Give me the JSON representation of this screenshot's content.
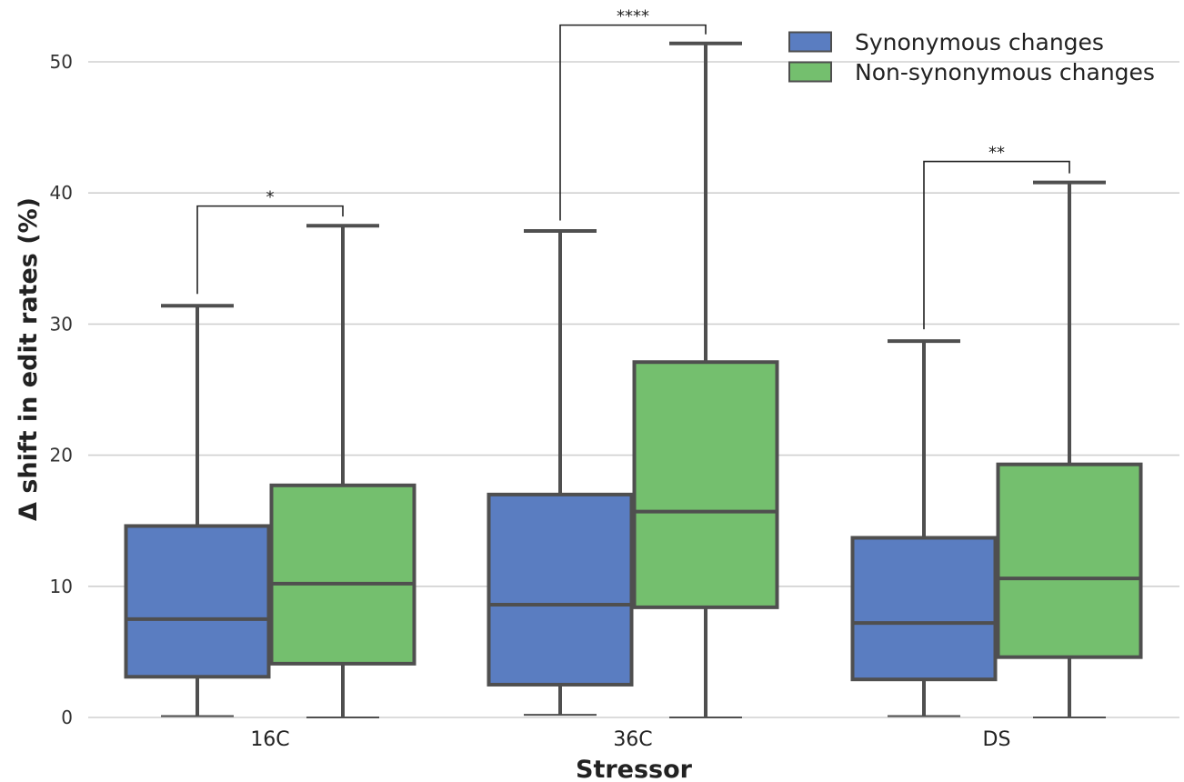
{
  "chart_data": {
    "type": "box",
    "xlabel": "Stressor",
    "ylabel": "Δ shift in edit rates (%)",
    "ylim": [
      0,
      53
    ],
    "yticks": [
      0,
      10,
      20,
      30,
      40,
      50
    ],
    "grid": "horizontal",
    "legend_position": "top-right",
    "categories": [
      "16C",
      "36C",
      "DS"
    ],
    "series": [
      {
        "name": "Synonymous changes",
        "color": "#5a7dc1",
        "boxes": [
          {
            "whisker_low": 0.1,
            "q1": 3.1,
            "median": 7.5,
            "q3": 14.6,
            "whisker_high": 31.4
          },
          {
            "whisker_low": 0.2,
            "q1": 2.5,
            "median": 8.6,
            "q3": 17.0,
            "whisker_high": 37.1
          },
          {
            "whisker_low": 0.1,
            "q1": 2.9,
            "median": 7.2,
            "q3": 13.7,
            "whisker_high": 28.7
          }
        ]
      },
      {
        "name": "Non-synonymous changes",
        "color": "#74bf6e",
        "boxes": [
          {
            "whisker_low": 0.0,
            "q1": 4.1,
            "median": 10.2,
            "q3": 17.7,
            "whisker_high": 37.5
          },
          {
            "whisker_low": 0.0,
            "q1": 8.4,
            "median": 15.7,
            "q3": 27.1,
            "whisker_high": 51.4
          },
          {
            "whisker_low": 0.0,
            "q1": 4.6,
            "median": 10.6,
            "q3": 19.3,
            "whisker_high": 40.8
          }
        ]
      }
    ],
    "significance": [
      {
        "category": "16C",
        "label": "*",
        "left_start": 32.3,
        "right_start": 38.2,
        "top": 39.0
      },
      {
        "category": "36C",
        "label": "****",
        "left_start": 37.9,
        "right_start": 52.1,
        "top": 52.8
      },
      {
        "category": "DS",
        "label": "**",
        "left_start": 29.6,
        "right_start": 41.5,
        "top": 42.4
      }
    ]
  }
}
